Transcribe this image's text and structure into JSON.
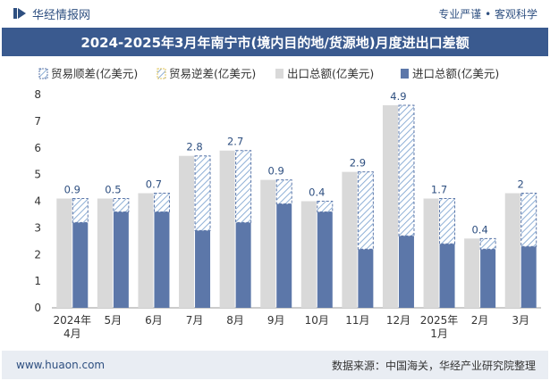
{
  "header": {
    "brand": "华经情报网",
    "tagline": "专业严谨 • 客观科学"
  },
  "title": "2024-2025年3月年南宁市(境内目的地/货源地)月度进出口差额",
  "footer": {
    "website": "www.huaon.com",
    "source": "数据来源：中国海关，华经产业研究院整理"
  },
  "colors": {
    "export": "#d9d9d9",
    "import": "#5c77a9",
    "diff_stroke": "#5c77a9",
    "diff_label": "#2e4f80",
    "title_bg": "#3a5a8f"
  },
  "chart_data": {
    "type": "bar",
    "title": "2024-2025年3月年南宁市(境内目的地/货源地)月度进出口差额",
    "categories": [
      "2024年\n4月",
      "5月",
      "6月",
      "7月",
      "8月",
      "9月",
      "10月",
      "11月",
      "12月",
      "2025年\n1月",
      "2月",
      "3月"
    ],
    "ylim": [
      0,
      8
    ],
    "yticks": [
      0,
      1,
      2,
      3,
      4,
      5,
      6,
      7,
      8
    ],
    "legend_position": "top",
    "legend": [
      "贸易顺差(亿美元)",
      "贸易逆差(亿美元)",
      "出口总额(亿美元)",
      "进口总额(亿美元)"
    ],
    "series": [
      {
        "name": "出口总额(亿美元)",
        "values": [
          4.1,
          4.1,
          4.3,
          5.7,
          5.9,
          4.8,
          4.0,
          5.1,
          7.6,
          4.1,
          2.6,
          4.3
        ]
      },
      {
        "name": "进口总额(亿美元)",
        "values": [
          3.2,
          3.6,
          3.6,
          2.9,
          3.2,
          3.9,
          3.6,
          2.2,
          2.7,
          2.4,
          2.2,
          2.3
        ]
      },
      {
        "name": "贸易顺差(亿美元)",
        "values": [
          0.9,
          0.5,
          0.7,
          2.8,
          2.7,
          0.9,
          0.4,
          2.9,
          4.9,
          1.7,
          0.4,
          2
        ]
      }
    ],
    "data_labels": [
      "0.9",
      "0.5",
      "0.7",
      "2.8",
      "2.7",
      "0.9",
      "0.4",
      "2.9",
      "4.9",
      "1.7",
      "0.4",
      "2"
    ]
  }
}
